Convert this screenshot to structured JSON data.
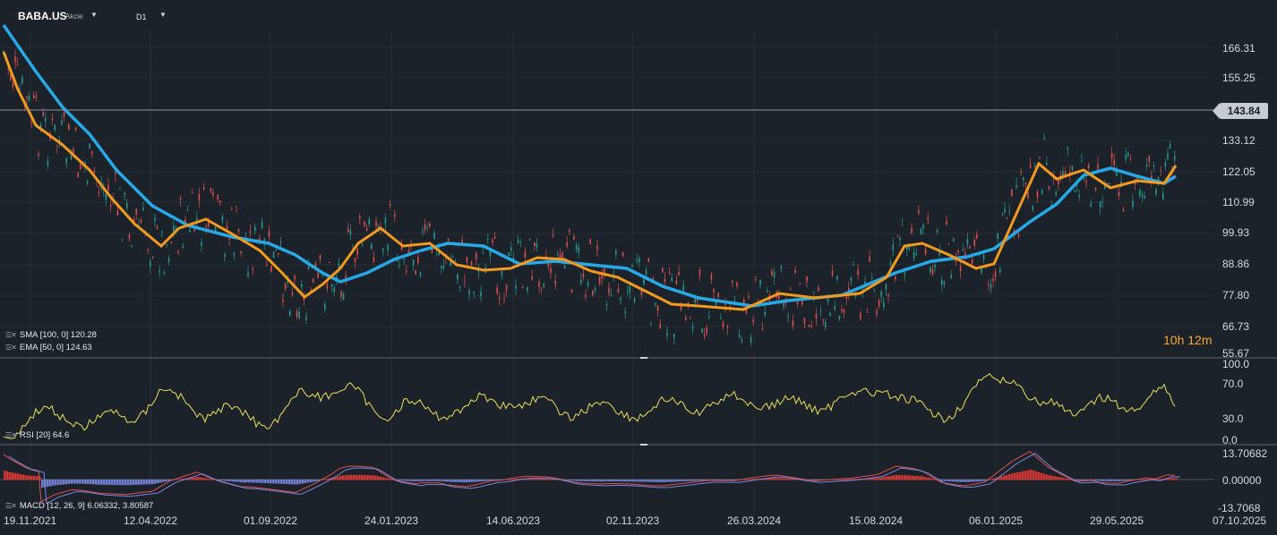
{
  "header": {
    "symbol": "BABA.US",
    "symbol_type": "Akcie",
    "timeframe": "D1",
    "dropdown_icon": "caret-down-icon"
  },
  "price_axis": {
    "labels": [
      "166.31",
      "155.25",
      "143.84",
      "133.12",
      "122.05",
      "110.99",
      "99.93",
      "88.86",
      "77.80",
      "66.73",
      "55.67"
    ],
    "current_price": "143.84"
  },
  "rsi_axis": {
    "labels": [
      "100.0",
      "70.0",
      "30.0",
      "0.0"
    ]
  },
  "macd_axis": {
    "labels": [
      "13.70682",
      "0.00000",
      "-13.7068"
    ]
  },
  "date_axis": {
    "labels": [
      "19.11.2021",
      "12.04.2022",
      "01.09.2022",
      "24.01.2023",
      "14.06.2023",
      "02.11.2023",
      "26.03.2024",
      "15.08.2024",
      "06.01.2025",
      "29.05.2025",
      "07.10.2025"
    ]
  },
  "indicators": {
    "sma": "SMA [100, 0] 120.28",
    "ema": "EMA [50, 0] 124.63",
    "rsi": "RSI [20] 64.6",
    "macd": "MACD [12, 26, 9] 6.06332, 3.80587"
  },
  "countdown": "10h 12m",
  "colors": {
    "background": "#1c2229",
    "sma": "#27a9e8",
    "ema": "#f39a1f",
    "rsi": "#e8e25a",
    "macd_positive": "#e53935",
    "macd_negative": "#7b86e0",
    "candle_up": "#26a69a",
    "candle_down": "#ef5350"
  }
}
